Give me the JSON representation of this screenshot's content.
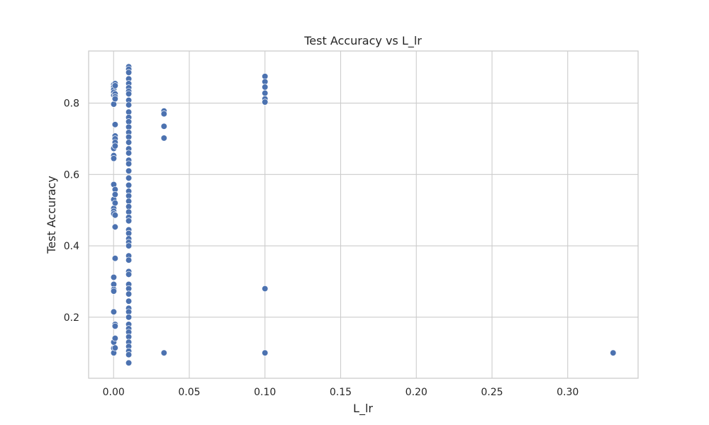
{
  "chart_data": {
    "type": "scatter",
    "title": "Test Accuracy vs L_lr",
    "xlabel": "L_lr",
    "ylabel": "Test Accuracy",
    "xlim": [
      -0.0165,
      0.3465
    ],
    "ylim": [
      0.0289,
      0.9461
    ],
    "xticks": [
      {
        "value": 0.0,
        "label": "0.00"
      },
      {
        "value": 0.05,
        "label": "0.05"
      },
      {
        "value": 0.1,
        "label": "0.10"
      },
      {
        "value": 0.15,
        "label": "0.15"
      },
      {
        "value": 0.2,
        "label": "0.20"
      },
      {
        "value": 0.25,
        "label": "0.25"
      },
      {
        "value": 0.3,
        "label": "0.30"
      }
    ],
    "yticks": [
      {
        "value": 0.2,
        "label": "0.2"
      },
      {
        "value": 0.4,
        "label": "0.4"
      },
      {
        "value": 0.6,
        "label": "0.6"
      },
      {
        "value": 0.8,
        "label": "0.8"
      }
    ],
    "grid": true,
    "point_color": "#4c72b0",
    "points": [
      {
        "x": 0.0001,
        "y": 0.852
      },
      {
        "x": 0.0001,
        "y": 0.845
      },
      {
        "x": 0.0001,
        "y": 0.838
      },
      {
        "x": 0.0001,
        "y": 0.83
      },
      {
        "x": 0.0001,
        "y": 0.822
      },
      {
        "x": 0.0001,
        "y": 0.797
      },
      {
        "x": 0.0001,
        "y": 0.673
      },
      {
        "x": 0.0001,
        "y": 0.653
      },
      {
        "x": 0.0001,
        "y": 0.645
      },
      {
        "x": 0.0001,
        "y": 0.572
      },
      {
        "x": 0.0001,
        "y": 0.53
      },
      {
        "x": 0.0001,
        "y": 0.505
      },
      {
        "x": 0.0001,
        "y": 0.497
      },
      {
        "x": 0.0001,
        "y": 0.49
      },
      {
        "x": 0.0001,
        "y": 0.312
      },
      {
        "x": 0.0001,
        "y": 0.292
      },
      {
        "x": 0.0001,
        "y": 0.278
      },
      {
        "x": 0.0001,
        "y": 0.273
      },
      {
        "x": 0.0001,
        "y": 0.215
      },
      {
        "x": 0.0001,
        "y": 0.13
      },
      {
        "x": 0.0001,
        "y": 0.113
      },
      {
        "x": 0.0001,
        "y": 0.1
      },
      {
        "x": 0.001,
        "y": 0.855
      },
      {
        "x": 0.001,
        "y": 0.849
      },
      {
        "x": 0.001,
        "y": 0.826
      },
      {
        "x": 0.001,
        "y": 0.818
      },
      {
        "x": 0.001,
        "y": 0.812
      },
      {
        "x": 0.001,
        "y": 0.74
      },
      {
        "x": 0.001,
        "y": 0.708
      },
      {
        "x": 0.001,
        "y": 0.7
      },
      {
        "x": 0.001,
        "y": 0.69
      },
      {
        "x": 0.001,
        "y": 0.68
      },
      {
        "x": 0.001,
        "y": 0.558
      },
      {
        "x": 0.001,
        "y": 0.544
      },
      {
        "x": 0.001,
        "y": 0.52
      },
      {
        "x": 0.001,
        "y": 0.486
      },
      {
        "x": 0.001,
        "y": 0.453
      },
      {
        "x": 0.001,
        "y": 0.365
      },
      {
        "x": 0.001,
        "y": 0.18
      },
      {
        "x": 0.001,
        "y": 0.175
      },
      {
        "x": 0.001,
        "y": 0.141
      },
      {
        "x": 0.001,
        "y": 0.114
      },
      {
        "x": 0.01,
        "y": 0.902
      },
      {
        "x": 0.01,
        "y": 0.895
      },
      {
        "x": 0.01,
        "y": 0.886
      },
      {
        "x": 0.01,
        "y": 0.868
      },
      {
        "x": 0.01,
        "y": 0.855
      },
      {
        "x": 0.01,
        "y": 0.843
      },
      {
        "x": 0.01,
        "y": 0.833
      },
      {
        "x": 0.01,
        "y": 0.826
      },
      {
        "x": 0.01,
        "y": 0.808
      },
      {
        "x": 0.01,
        "y": 0.795
      },
      {
        "x": 0.01,
        "y": 0.775
      },
      {
        "x": 0.01,
        "y": 0.76
      },
      {
        "x": 0.01,
        "y": 0.748
      },
      {
        "x": 0.01,
        "y": 0.733
      },
      {
        "x": 0.01,
        "y": 0.718
      },
      {
        "x": 0.01,
        "y": 0.705
      },
      {
        "x": 0.01,
        "y": 0.69
      },
      {
        "x": 0.01,
        "y": 0.672
      },
      {
        "x": 0.01,
        "y": 0.66
      },
      {
        "x": 0.01,
        "y": 0.64
      },
      {
        "x": 0.01,
        "y": 0.63
      },
      {
        "x": 0.01,
        "y": 0.61
      },
      {
        "x": 0.01,
        "y": 0.59
      },
      {
        "x": 0.01,
        "y": 0.57
      },
      {
        "x": 0.01,
        "y": 0.553
      },
      {
        "x": 0.01,
        "y": 0.54
      },
      {
        "x": 0.01,
        "y": 0.525
      },
      {
        "x": 0.01,
        "y": 0.51
      },
      {
        "x": 0.01,
        "y": 0.495
      },
      {
        "x": 0.01,
        "y": 0.48
      },
      {
        "x": 0.01,
        "y": 0.47
      },
      {
        "x": 0.01,
        "y": 0.445
      },
      {
        "x": 0.01,
        "y": 0.435
      },
      {
        "x": 0.01,
        "y": 0.42
      },
      {
        "x": 0.01,
        "y": 0.41
      },
      {
        "x": 0.01,
        "y": 0.4
      },
      {
        "x": 0.01,
        "y": 0.372
      },
      {
        "x": 0.01,
        "y": 0.36
      },
      {
        "x": 0.01,
        "y": 0.328
      },
      {
        "x": 0.01,
        "y": 0.32
      },
      {
        "x": 0.01,
        "y": 0.292
      },
      {
        "x": 0.01,
        "y": 0.28
      },
      {
        "x": 0.01,
        "y": 0.265
      },
      {
        "x": 0.01,
        "y": 0.245
      },
      {
        "x": 0.01,
        "y": 0.225
      },
      {
        "x": 0.01,
        "y": 0.215
      },
      {
        "x": 0.01,
        "y": 0.2
      },
      {
        "x": 0.01,
        "y": 0.18
      },
      {
        "x": 0.01,
        "y": 0.168
      },
      {
        "x": 0.01,
        "y": 0.158
      },
      {
        "x": 0.01,
        "y": 0.145
      },
      {
        "x": 0.01,
        "y": 0.13
      },
      {
        "x": 0.01,
        "y": 0.118
      },
      {
        "x": 0.01,
        "y": 0.105
      },
      {
        "x": 0.01,
        "y": 0.095
      },
      {
        "x": 0.01,
        "y": 0.072
      },
      {
        "x": 0.0333,
        "y": 0.778
      },
      {
        "x": 0.0333,
        "y": 0.77
      },
      {
        "x": 0.0333,
        "y": 0.735
      },
      {
        "x": 0.0333,
        "y": 0.702
      },
      {
        "x": 0.0333,
        "y": 0.1
      },
      {
        "x": 0.1,
        "y": 0.875
      },
      {
        "x": 0.1,
        "y": 0.86
      },
      {
        "x": 0.1,
        "y": 0.845
      },
      {
        "x": 0.1,
        "y": 0.828
      },
      {
        "x": 0.1,
        "y": 0.812
      },
      {
        "x": 0.1,
        "y": 0.803
      },
      {
        "x": 0.1,
        "y": 0.28
      },
      {
        "x": 0.1,
        "y": 0.1
      },
      {
        "x": 0.33,
        "y": 0.1
      }
    ]
  }
}
